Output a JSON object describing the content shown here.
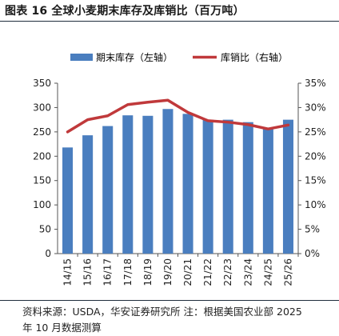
{
  "title": "图表 16  全球小麦期末库存及库销比（百万吨）",
  "source_line1": "资料来源：USDA，华安证券研究所  注：根据美国农业部 2025",
  "source_line2": "年 10 月数据测算",
  "colors": {
    "bar": "#4a7ebf",
    "line": "#c0393b",
    "axis": "#555555",
    "text": "#222222"
  },
  "chart_data": {
    "type": "bar",
    "title": "",
    "categories": [
      "14/15",
      "15/16",
      "16/17",
      "17/18",
      "18/19",
      "19/20",
      "20/21",
      "21/22",
      "22/23",
      "23/24",
      "24/25",
      "25/26"
    ],
    "series": [
      {
        "name": "期末库存（左轴）",
        "type": "bar",
        "axis": "left",
        "values": [
          218,
          243,
          262,
          284,
          283,
          297,
          287,
          275,
          275,
          270,
          258,
          275
        ]
      },
      {
        "name": "库销比（右轴）",
        "type": "line",
        "axis": "right",
        "values": [
          25.0,
          27.5,
          28.3,
          30.6,
          31.1,
          31.5,
          29.0,
          27.3,
          27.0,
          26.5,
          25.6,
          26.4
        ]
      }
    ],
    "ylim_left": [
      0,
      350
    ],
    "yticks_left": [
      "0",
      "50",
      "100",
      "150",
      "200",
      "250",
      "300",
      "350"
    ],
    "ylim_right": [
      0,
      35
    ],
    "yticks_right": [
      "0%",
      "5%",
      "10%",
      "15%",
      "20%",
      "25%",
      "30%",
      "35%"
    ],
    "legend": "top-center",
    "grid": false
  }
}
